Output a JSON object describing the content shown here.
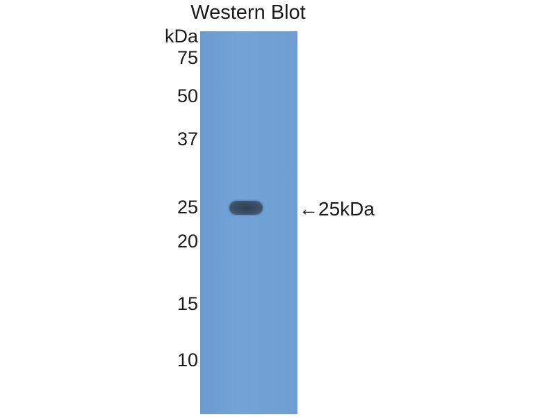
{
  "title": "Western Blot",
  "unit_label": "kDa",
  "markers": [
    "75",
    "50",
    "37",
    "25",
    "20",
    "15",
    "10"
  ],
  "band_annotation": {
    "arrow": "←",
    "label": "25kDa"
  },
  "colors": {
    "membrane": "#6f9fd2",
    "band": "#3a5068"
  }
}
